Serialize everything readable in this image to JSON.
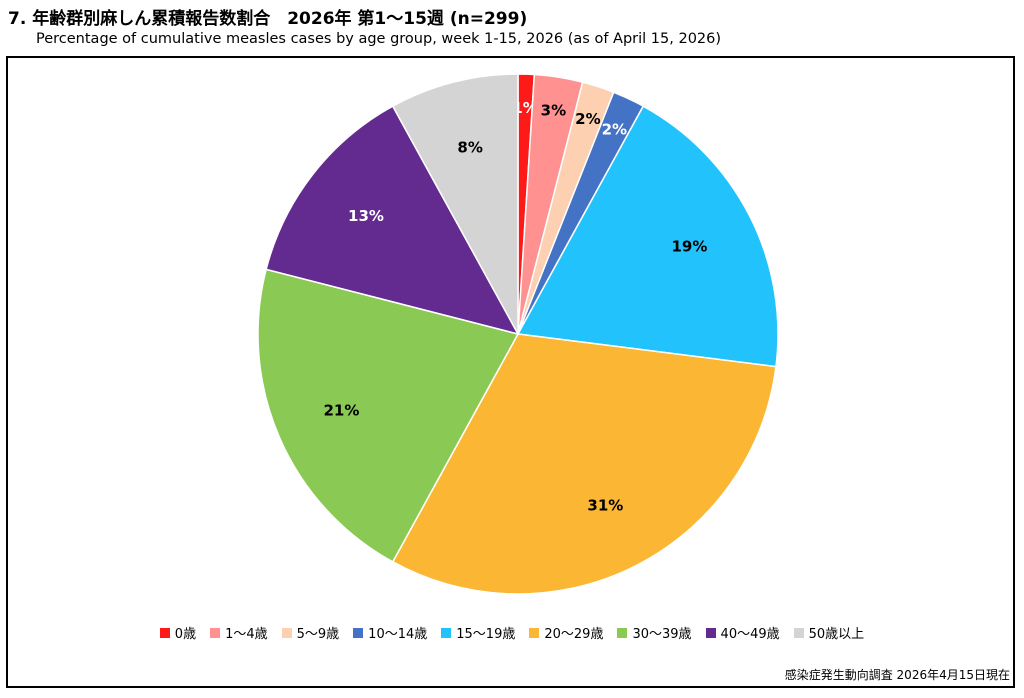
{
  "header": {
    "title": "7. 年齢群別麻しん累積報告数割合　2026年 第1～15週 (n=299)",
    "subtitle": "Percentage of cumulative measles cases by age group, week 1-15, 2026 (as of April 15, 2026)"
  },
  "source": "感染症発生動向調査 2026年4月15日現在",
  "chart_data": {
    "type": "pie",
    "title": "7. 年齢群別麻しん累積報告数割合　2026年 第1～15週 (n=299)",
    "subtitle": "Percentage of cumulative measles cases by age group, week 1-15, 2026 (as of April 15, 2026)",
    "legend_position": "bottom",
    "slices": [
      {
        "label": "0歳",
        "value": 1,
        "display": "1%",
        "color": "#ff1a1a",
        "label_color": "#ffffff"
      },
      {
        "label": "1～4歳",
        "value": 3,
        "display": "3%",
        "color": "#ff9191",
        "label_color": "#000000"
      },
      {
        "label": "5～9歳",
        "value": 2,
        "display": "2%",
        "color": "#fdd0b1",
        "label_color": "#000000"
      },
      {
        "label": "10～14歳",
        "value": 2,
        "display": "2%",
        "color": "#4472c4",
        "label_color": "#ffffff"
      },
      {
        "label": "15～19歳",
        "value": 19,
        "display": "19%",
        "color": "#22c3fc",
        "label_color": "#000000"
      },
      {
        "label": "20～29歳",
        "value": 31,
        "display": "31%",
        "color": "#fbb734",
        "label_color": "#000000"
      },
      {
        "label": "30～39歳",
        "value": 21,
        "display": "21%",
        "color": "#8bc955",
        "label_color": "#000000"
      },
      {
        "label": "40～49歳",
        "value": 13,
        "display": "13%",
        "color": "#632a8f",
        "label_color": "#ffffff"
      },
      {
        "label": "50歳以上",
        "value": 8,
        "display": "8%",
        "color": "#d4d4d4",
        "label_color": "#000000"
      }
    ]
  }
}
